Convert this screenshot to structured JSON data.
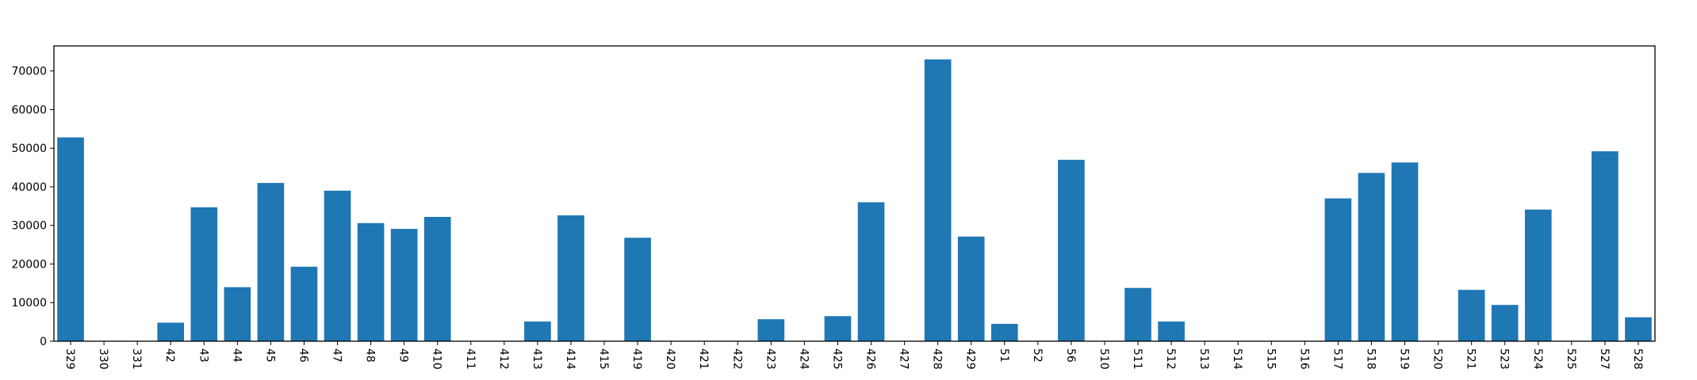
{
  "chart_data": {
    "type": "bar",
    "title": "",
    "xlabel": "",
    "ylabel": "",
    "ylim": [
      0,
      76500
    ],
    "yticks": [
      0,
      10000,
      20000,
      30000,
      40000,
      50000,
      60000,
      70000
    ],
    "ytick_labels": [
      "0",
      "10000",
      "20000",
      "30000",
      "40000",
      "50000",
      "60000",
      "70000"
    ],
    "grid": false,
    "legend": "none",
    "bar_color": "#1f77b4",
    "categories": [
      "329",
      "330",
      "331",
      "42",
      "43",
      "44",
      "45",
      "46",
      "47",
      "48",
      "49",
      "410",
      "411",
      "412",
      "413",
      "414",
      "415",
      "419",
      "420",
      "421",
      "422",
      "423",
      "424",
      "425",
      "426",
      "427",
      "428",
      "429",
      "51",
      "52",
      "56",
      "510",
      "511",
      "512",
      "513",
      "514",
      "515",
      "516",
      "517",
      "518",
      "519",
      "520",
      "521",
      "523",
      "524",
      "525",
      "527",
      "528"
    ],
    "values": [
      52800,
      0,
      0,
      4800,
      34700,
      14000,
      41000,
      19300,
      39000,
      30600,
      29100,
      32200,
      0,
      0,
      5100,
      32600,
      0,
      26800,
      0,
      0,
      0,
      5700,
      0,
      6500,
      36000,
      0,
      73000,
      27100,
      4500,
      0,
      47000,
      0,
      13800,
      5100,
      0,
      0,
      0,
      0,
      37000,
      43600,
      46300,
      0,
      13300,
      9400,
      34100,
      0,
      49200,
      6200
    ]
  }
}
